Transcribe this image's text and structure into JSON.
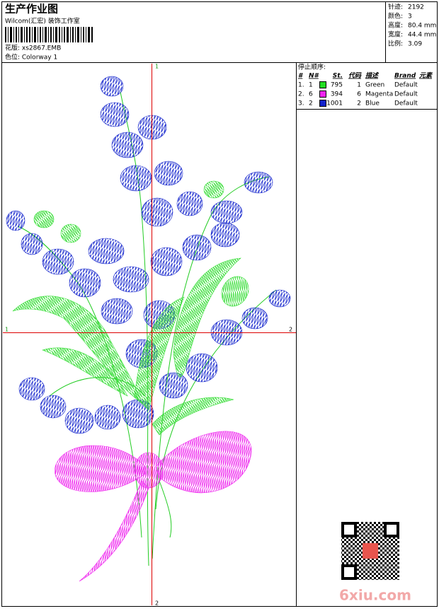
{
  "header": {
    "title": "生产作业图",
    "company": "Wilcom(汇宏) 装饰工作室",
    "design": "花版: xs2867.EMB",
    "colorway": "色位: Colorway 1"
  },
  "stats": [
    {
      "label": "针迹:",
      "value": "2192"
    },
    {
      "label": "颜色:",
      "value": "3"
    },
    {
      "label": "高度:",
      "value": "80.4 mm"
    },
    {
      "label": "宽度:",
      "value": "44.4 mm"
    },
    {
      "label": "比例:",
      "value": "3.09"
    }
  ],
  "stop_sequence": {
    "title": "停止顺序:",
    "headers": [
      "#",
      "N#",
      "St.",
      "代码",
      "描述",
      "Brand",
      "元素"
    ],
    "rows": [
      {
        "index": "1.",
        "needle": "1",
        "color": "#22dd22",
        "stitches": "795",
        "code": "1",
        "description": "Green",
        "brand": "Default"
      },
      {
        "index": "2.",
        "needle": "6",
        "color": "#ee22ee",
        "stitches": "394",
        "code": "6",
        "description": "Magenta",
        "brand": "Default"
      },
      {
        "index": "3.",
        "needle": "2",
        "color": "#1122cc",
        "stitches": "1001",
        "code": "2",
        "description": "Blue",
        "brand": "Default"
      }
    ]
  },
  "axis_labels": {
    "top": "1",
    "bottom": "2",
    "left": "1",
    "right": "2"
  },
  "watermark": "6xiu.com"
}
